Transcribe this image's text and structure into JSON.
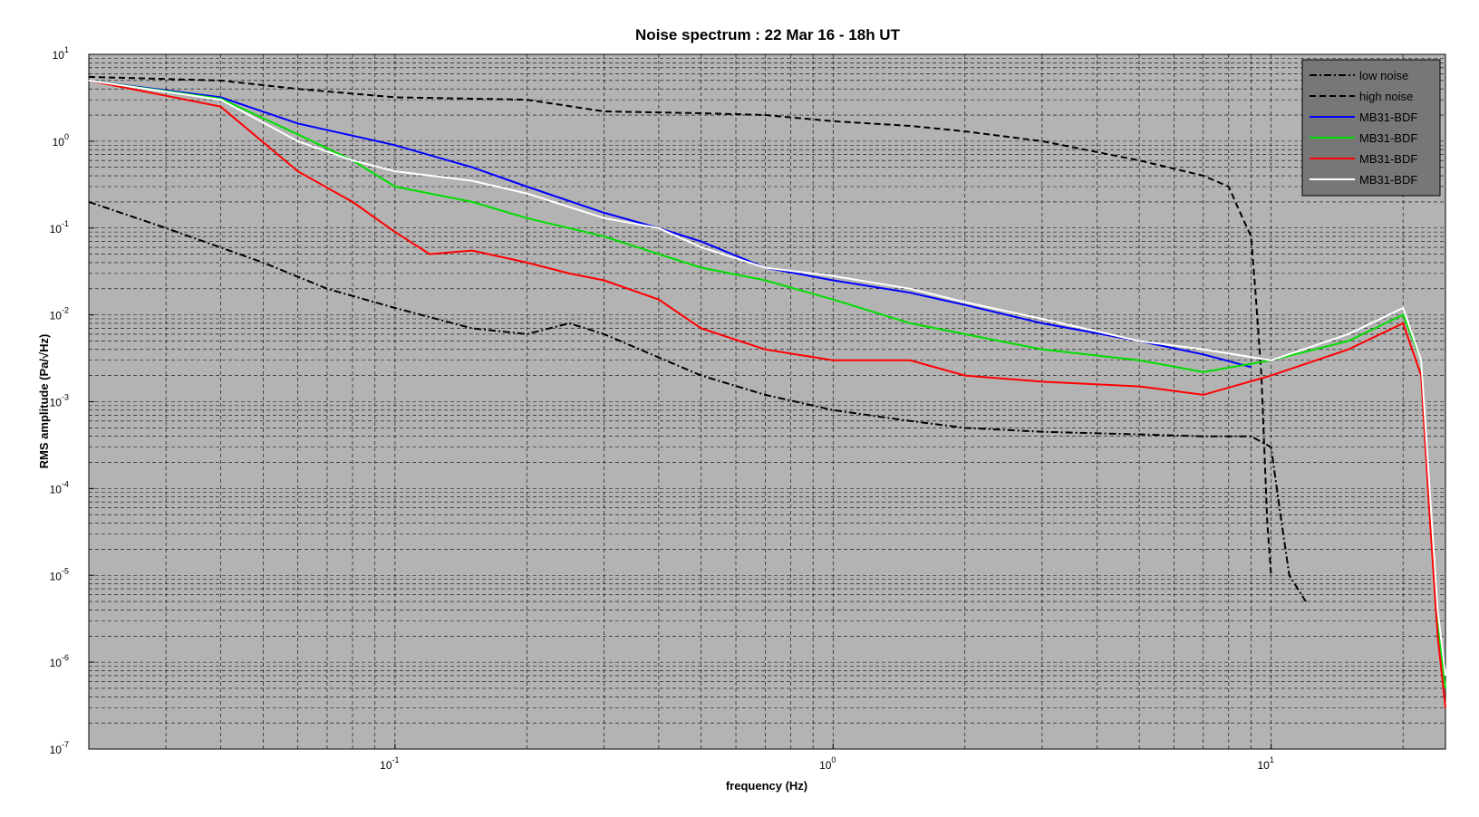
{
  "chart_data": {
    "type": "line",
    "title": "Noise spectrum : 22 Mar 16 - 18h UT",
    "xlabel": "frequency (Hz)",
    "ylabel": "RMS amplitude (Pa/√Hz)",
    "x_scale": "log",
    "y_scale": "log",
    "xlim": [
      0.02,
      25
    ],
    "ylim": [
      1e-07,
      10
    ],
    "x_tick_labels": [
      {
        "base": "10",
        "exp": "-1",
        "value": 0.1
      },
      {
        "base": "10",
        "exp": "0",
        "value": 1
      },
      {
        "base": "10",
        "exp": "1",
        "value": 10
      }
    ],
    "y_tick_labels": [
      {
        "base": "10",
        "exp": "1",
        "value": 10
      },
      {
        "base": "10",
        "exp": "0",
        "value": 1
      },
      {
        "base": "10",
        "exp": "-1",
        "value": 0.1
      },
      {
        "base": "10",
        "exp": "-2",
        "value": 0.01
      },
      {
        "base": "10",
        "exp": "-3",
        "value": 0.001
      },
      {
        "base": "10",
        "exp": "-4",
        "value": 0.0001
      },
      {
        "base": "10",
        "exp": "-5",
        "value": 1e-05
      },
      {
        "base": "10",
        "exp": "-6",
        "value": 1e-06
      },
      {
        "base": "10",
        "exp": "-7",
        "value": 1e-07
      }
    ],
    "grid": "major and minor, dashed",
    "legend_position": "top-right",
    "plot_background": "#b3b3b3",
    "series": [
      {
        "name": "low noise",
        "color": "#000000",
        "dash": "dot-dash",
        "x": [
          0.02,
          0.03,
          0.05,
          0.07,
          0.1,
          0.15,
          0.2,
          0.25,
          0.3,
          0.5,
          0.7,
          1,
          1.5,
          2,
          3,
          5,
          7,
          9,
          10,
          10.5,
          11,
          12
        ],
        "y": [
          0.2,
          0.1,
          0.04,
          0.02,
          0.012,
          0.007,
          0.006,
          0.008,
          0.006,
          0.002,
          0.0012,
          0.0008,
          0.0006,
          0.0005,
          0.00045,
          0.00042,
          0.0004,
          0.0004,
          0.0003,
          5e-05,
          1e-05,
          5e-06
        ]
      },
      {
        "name": "high noise",
        "color": "#000000",
        "dash": "dash",
        "x": [
          0.02,
          0.04,
          0.06,
          0.1,
          0.2,
          0.3,
          0.5,
          0.7,
          1,
          1.5,
          2,
          3,
          5,
          7,
          8,
          8.5,
          9,
          9.2,
          9.5,
          9.8,
          10
        ],
        "y": [
          5.5,
          5,
          4,
          3.2,
          3,
          2.2,
          2.1,
          2,
          1.7,
          1.5,
          1.3,
          1.0,
          0.6,
          0.4,
          0.3,
          0.15,
          0.08,
          0.02,
          0.002,
          4e-05,
          1e-05
        ]
      },
      {
        "name": "MB31-BDF",
        "color": "#0000ff",
        "dash": "solid",
        "x": [
          0.02,
          0.04,
          0.06,
          0.1,
          0.15,
          0.2,
          0.3,
          0.4,
          0.5,
          0.7,
          1,
          1.5,
          2,
          3,
          5,
          7,
          9
        ],
        "y": [
          5,
          3.2,
          1.6,
          0.9,
          0.5,
          0.3,
          0.15,
          0.1,
          0.07,
          0.035,
          0.025,
          0.018,
          0.013,
          0.008,
          0.005,
          0.0035,
          0.0025
        ]
      },
      {
        "name": "MB31-BDF",
        "color": "#00dd00",
        "dash": "solid",
        "x": [
          0.02,
          0.04,
          0.06,
          0.08,
          0.1,
          0.15,
          0.2,
          0.3,
          0.4,
          0.5,
          0.7,
          1,
          1.5,
          2,
          3,
          5,
          7,
          10,
          15,
          20,
          22,
          23,
          24,
          25
        ],
        "y": [
          5,
          3.1,
          1.2,
          0.6,
          0.3,
          0.2,
          0.13,
          0.08,
          0.05,
          0.035,
          0.025,
          0.015,
          0.008,
          0.006,
          0.004,
          0.003,
          0.0022,
          0.003,
          0.005,
          0.01,
          0.003,
          8e-05,
          3e-06,
          5e-07
        ]
      },
      {
        "name": "MB31-BDF",
        "color": "#ff0000",
        "dash": "solid",
        "x": [
          0.02,
          0.04,
          0.06,
          0.08,
          0.1,
          0.12,
          0.15,
          0.2,
          0.25,
          0.3,
          0.4,
          0.5,
          0.7,
          1,
          1.5,
          2,
          3,
          5,
          7,
          10,
          15,
          20,
          22,
          23,
          24,
          25
        ],
        "y": [
          5,
          2.5,
          0.45,
          0.2,
          0.09,
          0.05,
          0.055,
          0.04,
          0.03,
          0.025,
          0.015,
          0.007,
          0.004,
          0.003,
          0.003,
          0.002,
          0.0017,
          0.0015,
          0.0012,
          0.002,
          0.004,
          0.008,
          0.002,
          5e-05,
          2e-06,
          3e-07
        ]
      },
      {
        "name": "MB31-BDF",
        "color": "#ffffff",
        "dash": "solid",
        "x": [
          0.02,
          0.04,
          0.06,
          0.08,
          0.1,
          0.15,
          0.2,
          0.3,
          0.4,
          0.5,
          0.7,
          1,
          1.5,
          2,
          3,
          5,
          7,
          10,
          15,
          20,
          22,
          23,
          24,
          25
        ],
        "y": [
          5,
          3.0,
          1.0,
          0.6,
          0.45,
          0.35,
          0.25,
          0.13,
          0.1,
          0.06,
          0.035,
          0.028,
          0.02,
          0.014,
          0.009,
          0.005,
          0.004,
          0.003,
          0.006,
          0.012,
          0.003,
          0.0001,
          4e-06,
          7e-07
        ]
      }
    ]
  }
}
